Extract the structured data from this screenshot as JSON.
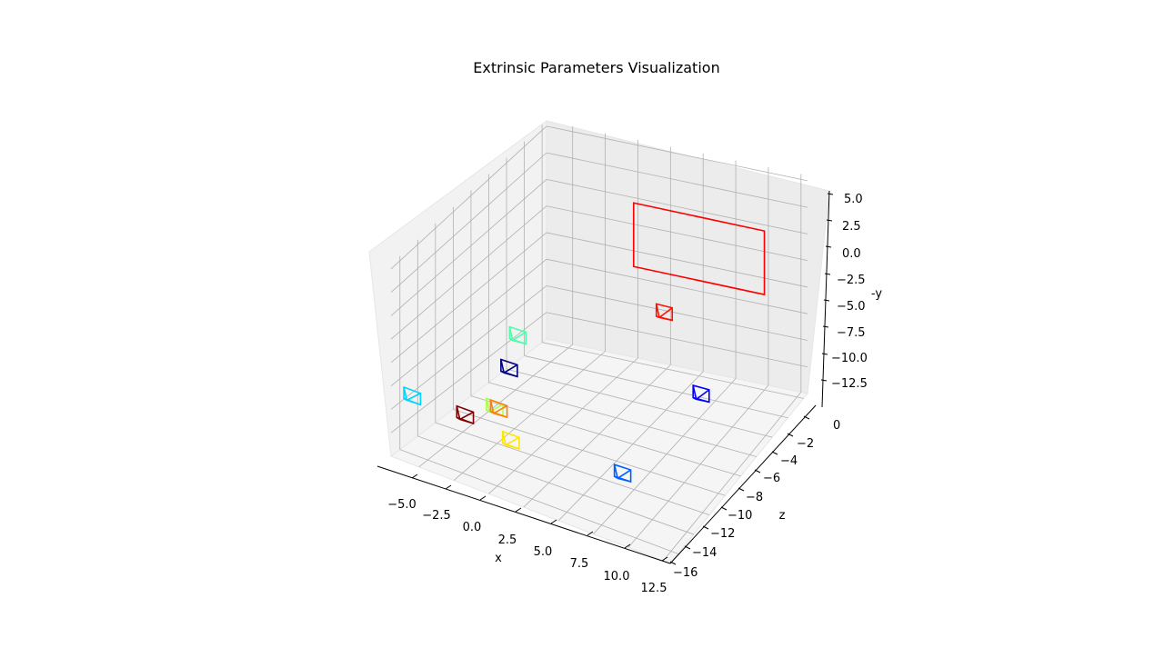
{
  "chart_data": {
    "type": "3d-wireframe",
    "title": "Extrinsic Parameters Visualization",
    "xlabel": "x",
    "ylabel": "z",
    "zlabel": "-y",
    "xlim": [
      -7.0,
      13.0
    ],
    "ylim": [
      -17.0,
      0.5
    ],
    "zlim": [
      -15.0,
      5.5
    ],
    "grid": true,
    "x_ticks": [
      "−5.0",
      "−2.5",
      "0.0",
      "2.5",
      "5.0",
      "7.5",
      "10.0",
      "12.5"
    ],
    "y_ticks": [
      "0",
      "−2",
      "−4",
      "−6",
      "−8",
      "−10",
      "−12",
      "−14",
      "−16"
    ],
    "z_ticks": [
      "5.0",
      "2.5",
      "0.0",
      "−2.5",
      "−5.0",
      "−7.5",
      "−10.0",
      "−12.5"
    ],
    "board": {
      "color": "#ff0000",
      "corners": [
        [
          0,
          0,
          0
        ],
        [
          10,
          0,
          0
        ],
        [
          10,
          0,
          -6
        ],
        [
          0,
          0,
          -6
        ]
      ]
    },
    "cameras": [
      {
        "color": "#00007f",
        "center": [
          -2.0,
          -12.0,
          -7.5
        ]
      },
      {
        "color": "#0000ff",
        "center": [
          8.5,
          -6.0,
          -11.0
        ]
      },
      {
        "color": "#0060ff",
        "center": [
          6.0,
          -11.5,
          -15.0
        ]
      },
      {
        "color": "#00d4ff",
        "center": [
          -6.5,
          -16.0,
          -9.5
        ]
      },
      {
        "color": "#4cffaa",
        "center": [
          -2.0,
          -11.0,
          -5.0
        ]
      },
      {
        "color": "#aaff4c",
        "center": [
          -1.8,
          -14.0,
          -9.8
        ]
      },
      {
        "color": "#ffe600",
        "center": [
          0.0,
          -15.0,
          -11.5
        ]
      },
      {
        "color": "#ff8000",
        "center": [
          -1.5,
          -14.0,
          -9.8
        ]
      },
      {
        "color": "#ff1300",
        "center": [
          4.5,
          -4.0,
          -6.2
        ]
      },
      {
        "color": "#7f0000",
        "center": [
          -3.0,
          -15.5,
          -10.0
        ]
      }
    ]
  }
}
